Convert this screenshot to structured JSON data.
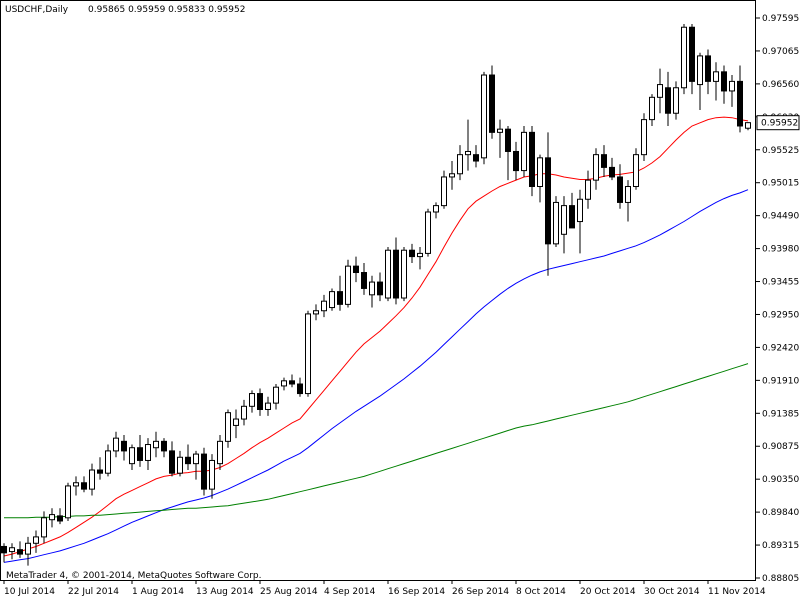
{
  "window": {
    "title": "USDCHF,Daily",
    "ohlc_readout": "0.95865 0.95959 0.95833 0.95952",
    "copyright": "MetaTrader 4, © 2001-2014, MetaQuotes Software Corp."
  },
  "chart_data": {
    "type": "candlestick",
    "symbol": "USDCHF",
    "timeframe": "Daily",
    "current_price": 0.95952,
    "current_price_label": "0.95952",
    "y_tick_labels": [
      "0.97595",
      "0.97065",
      "0.96560",
      "0.96030",
      "0.95525",
      "0.95015",
      "0.94490",
      "0.93980",
      "0.93455",
      "0.92950",
      "0.92420",
      "0.91910",
      "0.91385",
      "0.90875",
      "0.90350",
      "0.89840",
      "0.89315",
      "0.88805"
    ],
    "ylim": [
      0.88805,
      0.97595
    ],
    "x_tick_labels": [
      "10 Jul 2014",
      "22 Jul 2014",
      "1 Aug 2014",
      "13 Aug 2014",
      "25 Aug 2014",
      "4 Sep 2014",
      "16 Sep 2014",
      "26 Sep 2014",
      "8 Oct 2014",
      "20 Oct 2014",
      "30 Oct 2014",
      "11 Nov 2014"
    ],
    "x_tick_bar_index": [
      0,
      8,
      16,
      24,
      32,
      40,
      48,
      56,
      64,
      72,
      80,
      88
    ],
    "grid": false,
    "candles": [
      [
        0.893,
        0.8935,
        0.8905,
        0.892
      ],
      [
        0.8922,
        0.8935,
        0.891,
        0.8928
      ],
      [
        0.8925,
        0.8938,
        0.8912,
        0.8918
      ],
      [
        0.8918,
        0.8945,
        0.89,
        0.8935
      ],
      [
        0.8935,
        0.8955,
        0.892,
        0.8945
      ],
      [
        0.8945,
        0.8985,
        0.8935,
        0.8975
      ],
      [
        0.8972,
        0.899,
        0.896,
        0.898
      ],
      [
        0.8978,
        0.899,
        0.8965,
        0.897
      ],
      [
        0.8975,
        0.903,
        0.897,
        0.9025
      ],
      [
        0.9025,
        0.904,
        0.901,
        0.903
      ],
      [
        0.903,
        0.904,
        0.9015,
        0.902
      ],
      [
        0.902,
        0.906,
        0.901,
        0.905
      ],
      [
        0.905,
        0.907,
        0.9035,
        0.9045
      ],
      [
        0.9045,
        0.909,
        0.904,
        0.908
      ],
      [
        0.908,
        0.911,
        0.907,
        0.91
      ],
      [
        0.9095,
        0.9105,
        0.9065,
        0.908
      ],
      [
        0.906,
        0.909,
        0.905,
        0.9085
      ],
      [
        0.9085,
        0.9105,
        0.9055,
        0.9065
      ],
      [
        0.9065,
        0.91,
        0.905,
        0.909
      ],
      [
        0.9085,
        0.911,
        0.907,
        0.9095
      ],
      [
        0.9095,
        0.91,
        0.907,
        0.908
      ],
      [
        0.908,
        0.9095,
        0.904,
        0.9045
      ],
      [
        0.9045,
        0.908,
        0.904,
        0.907
      ],
      [
        0.907,
        0.909,
        0.905,
        0.906
      ],
      [
        0.906,
        0.908,
        0.9035,
        0.9075
      ],
      [
        0.9075,
        0.9085,
        0.901,
        0.902
      ],
      [
        0.902,
        0.9075,
        0.9005,
        0.9065
      ],
      [
        0.906,
        0.9105,
        0.905,
        0.9095
      ],
      [
        0.9095,
        0.9145,
        0.9085,
        0.914
      ],
      [
        0.912,
        0.9145,
        0.91,
        0.913
      ],
      [
        0.913,
        0.916,
        0.912,
        0.915
      ],
      [
        0.915,
        0.9175,
        0.914,
        0.917
      ],
      [
        0.917,
        0.9178,
        0.9135,
        0.9145
      ],
      [
        0.9145,
        0.9165,
        0.9135,
        0.9155
      ],
      [
        0.9155,
        0.9185,
        0.9145,
        0.918
      ],
      [
        0.9182,
        0.9195,
        0.9175,
        0.919
      ],
      [
        0.919,
        0.92,
        0.918,
        0.9185
      ],
      [
        0.9185,
        0.9195,
        0.9165,
        0.917
      ],
      [
        0.917,
        0.93,
        0.9165,
        0.9295
      ],
      [
        0.9295,
        0.931,
        0.9285,
        0.93
      ],
      [
        0.93,
        0.9325,
        0.929,
        0.9315
      ],
      [
        0.9305,
        0.9335,
        0.93,
        0.933
      ],
      [
        0.933,
        0.9355,
        0.93,
        0.931
      ],
      [
        0.931,
        0.938,
        0.9305,
        0.937
      ],
      [
        0.937,
        0.9385,
        0.9345,
        0.936
      ],
      [
        0.936,
        0.9375,
        0.9325,
        0.9335
      ],
      [
        0.9325,
        0.9355,
        0.9305,
        0.9345
      ],
      [
        0.9345,
        0.936,
        0.9315,
        0.9325
      ],
      [
        0.932,
        0.94,
        0.9315,
        0.9395
      ],
      [
        0.9395,
        0.9415,
        0.931,
        0.932
      ],
      [
        0.932,
        0.94,
        0.9315,
        0.9395
      ],
      [
        0.9395,
        0.9405,
        0.9375,
        0.9385
      ],
      [
        0.9385,
        0.94,
        0.9365,
        0.939
      ],
      [
        0.939,
        0.946,
        0.9385,
        0.9455
      ],
      [
        0.9455,
        0.947,
        0.9445,
        0.9465
      ],
      [
        0.9465,
        0.952,
        0.946,
        0.951
      ],
      [
        0.951,
        0.9535,
        0.949,
        0.9515
      ],
      [
        0.9515,
        0.956,
        0.9505,
        0.9545
      ],
      [
        0.9545,
        0.96,
        0.952,
        0.955
      ],
      [
        0.9545,
        0.956,
        0.9525,
        0.9535
      ],
      [
        0.954,
        0.9675,
        0.953,
        0.967
      ],
      [
        0.967,
        0.9685,
        0.957,
        0.958
      ],
      [
        0.958,
        0.96,
        0.954,
        0.9585
      ],
      [
        0.9585,
        0.959,
        0.9505,
        0.955
      ],
      [
        0.955,
        0.9565,
        0.9505,
        0.952
      ],
      [
        0.952,
        0.959,
        0.951,
        0.958
      ],
      [
        0.958,
        0.959,
        0.948,
        0.9495
      ],
      [
        0.9495,
        0.9545,
        0.947,
        0.954
      ],
      [
        0.954,
        0.958,
        0.9355,
        0.9405
      ],
      [
        0.9405,
        0.948,
        0.94,
        0.947
      ],
      [
        0.942,
        0.948,
        0.939,
        0.9465
      ],
      [
        0.9465,
        0.9485,
        0.943,
        0.943
      ],
      [
        0.944,
        0.949,
        0.939,
        0.9475
      ],
      [
        0.9475,
        0.952,
        0.946,
        0.9505
      ],
      [
        0.9505,
        0.9555,
        0.949,
        0.9545
      ],
      [
        0.9545,
        0.956,
        0.951,
        0.9525
      ],
      [
        0.9525,
        0.954,
        0.9505,
        0.951
      ],
      [
        0.951,
        0.953,
        0.946,
        0.947
      ],
      [
        0.947,
        0.9505,
        0.944,
        0.9495
      ],
      [
        0.9495,
        0.9555,
        0.949,
        0.9545
      ],
      [
        0.9545,
        0.961,
        0.9535,
        0.96
      ],
      [
        0.96,
        0.964,
        0.959,
        0.9635
      ],
      [
        0.9635,
        0.968,
        0.961,
        0.9655
      ],
      [
        0.965,
        0.9675,
        0.959,
        0.961
      ],
      [
        0.961,
        0.966,
        0.96,
        0.965
      ],
      [
        0.965,
        0.975,
        0.964,
        0.9745
      ],
      [
        0.9745,
        0.975,
        0.964,
        0.966
      ],
      [
        0.9655,
        0.9705,
        0.9615,
        0.97
      ],
      [
        0.97,
        0.971,
        0.964,
        0.966
      ],
      [
        0.966,
        0.969,
        0.963,
        0.9675
      ],
      [
        0.9675,
        0.9685,
        0.9625,
        0.9645
      ],
      [
        0.9645,
        0.967,
        0.962,
        0.966
      ],
      [
        0.966,
        0.9685,
        0.958,
        0.959
      ],
      [
        0.95865,
        0.95959,
        0.95833,
        0.95952
      ]
    ],
    "series": [
      {
        "color": "#ff0000",
        "values": [
          0.8915,
          0.8918,
          0.8922,
          0.8926,
          0.893,
          0.8935,
          0.894,
          0.8945,
          0.8952,
          0.896,
          0.8968,
          0.8976,
          0.8985,
          0.8995,
          0.9005,
          0.9012,
          0.9018,
          0.9024,
          0.903,
          0.9036,
          0.904,
          0.9042,
          0.9045,
          0.9046,
          0.9048,
          0.9048,
          0.905,
          0.9054,
          0.906,
          0.9068,
          0.9076,
          0.9085,
          0.9093,
          0.91,
          0.9108,
          0.9116,
          0.9124,
          0.913,
          0.9145,
          0.916,
          0.9175,
          0.919,
          0.9205,
          0.922,
          0.9235,
          0.9248,
          0.9258,
          0.9268,
          0.928,
          0.9292,
          0.9305,
          0.932,
          0.9337,
          0.9357,
          0.9377,
          0.94,
          0.9422,
          0.9442,
          0.946,
          0.9472,
          0.948,
          0.9488,
          0.9495,
          0.95,
          0.9505,
          0.951,
          0.9512,
          0.9515,
          0.9515,
          0.9513,
          0.951,
          0.9508,
          0.9506,
          0.9506,
          0.9508,
          0.9511,
          0.9513,
          0.9514,
          0.9516,
          0.9518,
          0.9524,
          0.9532,
          0.9542,
          0.9555,
          0.9568,
          0.958,
          0.959,
          0.9595,
          0.96,
          0.9603,
          0.9604,
          0.9603,
          0.96,
          0.9598
        ]
      },
      {
        "color": "#0000ff",
        "values": [
          0.8905,
          0.8907,
          0.8909,
          0.8911,
          0.8914,
          0.8917,
          0.892,
          0.8923,
          0.8927,
          0.8931,
          0.8935,
          0.894,
          0.8945,
          0.895,
          0.8956,
          0.8962,
          0.8968,
          0.8973,
          0.8978,
          0.8983,
          0.8988,
          0.8992,
          0.8996,
          0.9,
          0.9003,
          0.9006,
          0.901,
          0.9015,
          0.902,
          0.9026,
          0.9032,
          0.9038,
          0.9044,
          0.905,
          0.9057,
          0.9064,
          0.907,
          0.9076,
          0.9085,
          0.9095,
          0.9105,
          0.9115,
          0.9124,
          0.9133,
          0.9142,
          0.915,
          0.9158,
          0.9166,
          0.9175,
          0.9184,
          0.9193,
          0.9203,
          0.9213,
          0.9224,
          0.9235,
          0.9247,
          0.9259,
          0.9271,
          0.9283,
          0.9295,
          0.9306,
          0.9316,
          0.9326,
          0.9335,
          0.9343,
          0.935,
          0.9356,
          0.9361,
          0.9365,
          0.9368,
          0.9371,
          0.9374,
          0.9377,
          0.938,
          0.9383,
          0.9386,
          0.939,
          0.9394,
          0.9398,
          0.9402,
          0.9407,
          0.9413,
          0.9419,
          0.9426,
          0.9433,
          0.944,
          0.9448,
          0.9456,
          0.9463,
          0.947,
          0.9476,
          0.9481,
          0.9485,
          0.949
        ]
      },
      {
        "color": "#008000",
        "values": [
          0.8975,
          0.8975,
          0.8975,
          0.8975,
          0.8976,
          0.8976,
          0.8976,
          0.8977,
          0.8977,
          0.8978,
          0.8978,
          0.8979,
          0.8979,
          0.898,
          0.8981,
          0.8982,
          0.8983,
          0.8984,
          0.8985,
          0.8986,
          0.8987,
          0.8988,
          0.8989,
          0.899,
          0.899,
          0.8991,
          0.8992,
          0.8993,
          0.8994,
          0.8996,
          0.8998,
          0.9,
          0.9002,
          0.9004,
          0.9007,
          0.901,
          0.9013,
          0.9016,
          0.9019,
          0.9022,
          0.9025,
          0.9028,
          0.9031,
          0.9034,
          0.9037,
          0.904,
          0.9044,
          0.9048,
          0.9052,
          0.9056,
          0.906,
          0.9064,
          0.9068,
          0.9072,
          0.9076,
          0.908,
          0.9084,
          0.9088,
          0.9092,
          0.9096,
          0.91,
          0.9104,
          0.9108,
          0.9112,
          0.9116,
          0.9119,
          0.9121,
          0.9124,
          0.9127,
          0.913,
          0.9133,
          0.9136,
          0.9139,
          0.9142,
          0.9145,
          0.9148,
          0.9151,
          0.9154,
          0.9157,
          0.9161,
          0.9165,
          0.9169,
          0.9173,
          0.9177,
          0.9181,
          0.9185,
          0.9189,
          0.9193,
          0.9197,
          0.9201,
          0.9205,
          0.9209,
          0.9213,
          0.9217
        ]
      }
    ]
  }
}
